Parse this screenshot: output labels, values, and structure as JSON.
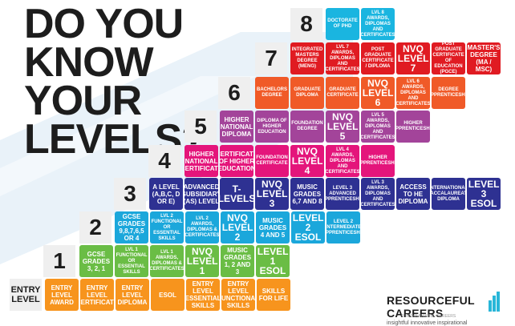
{
  "title": {
    "line1": "DO YOU",
    "line2": "KNOW",
    "line3": "YOUR",
    "line4": "LEVELS?"
  },
  "levels": {
    "entry": "ENTRY LEVEL",
    "l1": "1",
    "l2": "2",
    "l3": "3",
    "l4": "4",
    "l5": "5",
    "l6": "6",
    "l7": "7",
    "l8": "8"
  },
  "colors": {
    "entry": "#f7941d",
    "l1": "#6abd45",
    "l2": "#1ba7db",
    "l3": "#2e3192",
    "l4": "#e4157b",
    "l5": "#a3449a",
    "l6": "#f05a28",
    "l7": "#e01b22",
    "l8": "#1ab5e0"
  },
  "cards": {
    "entry": [
      "ENTRY LEVEL AWARD",
      "ENTRY LEVEL CERTIFICATE",
      "ENTRY LEVEL DIPLOMA",
      "ESOL",
      "ENTRY LEVEL ESSENTIAL SKILLS",
      "ENTRY LEVEL FUNCTIONAL SKILLS",
      "SKILLS FOR LIFE"
    ],
    "l1": [
      "GCSE GRADES 3, 2, 1",
      "LVL 1 FUNCTIONAL OR ESSENTIAL SKILLS",
      "LVL 1 AWARDS, DIPLOMAS & CERTIFICATES",
      "NVQ LEVEL 1",
      "MUSIC GRADES 1, 2 AND 3",
      "LEVEL 1 ESOL"
    ],
    "l2": [
      "GCSE GRADES 9,8,7,6,5 OR 4",
      "LVL 2 FUNCTIONAL OR ESSENTIAL SKILLS",
      "LVL 2 AWARDS, DIPLOMAS & CERTIFICATES",
      "NVQ LEVEL 2",
      "MUSIC GRADES 4 AND 5",
      "LEVEL 2 ESOL",
      "LEVEL 2 INTERMEDIATE APPRENTICESHIP"
    ],
    "l3": [
      "A LEVEL (A,B,C, D OR E)",
      "ADVANCED SUBSIDIARY (AS) LEVEL",
      "T-LEVELS",
      "NVQ LEVEL 3",
      "MUSIC GRADES 6,7 AND 8",
      "LEVEL 3 ADVANCED APPRENTICESHIP",
      "LVL 3 AWARDS, DIPLOMAS AND CERTIFICATES",
      "ACCESS TO HE DIPLOMA",
      "INTERNATIONAL BACCALAUREATE DIPLOMA",
      "LEVEL 3 ESOL"
    ],
    "l4": [
      "HIGHER NATIONAL CERTIFICATE",
      "CERTIFICATE OF HIGHER EDUCATION",
      "FOUNDATION CERTIFICATE",
      "NVQ LEVEL 4",
      "LVL 4 AWARDS, DIPLOMAS AND CERTIFICATES",
      "HIGHER APPRENTICESHIP"
    ],
    "l5": [
      "HIGHER NATIONAL DIPLOMA",
      "DIPLOMA OF HIGHER EDUCATION",
      "FOUNDATION DEGREE",
      "NVQ LEVEL 5",
      "LVL 5 AWARDS, DIPLOMAS AND CERTIFICATES",
      "HIGHER APPRENTICESHIP"
    ],
    "l6": [
      "BACHELORS DEGREE",
      "GRADUATE DIPLOMA",
      "GRADUATE CERTIFICATE",
      "NVQ LEVEL 6",
      "LVL 6 AWARDS, DIPLOMAS AND CERTIFICATES",
      "DEGREE APPRENTICESHIP"
    ],
    "l7": [
      "INTEGRATED MASTERS DEGREE (MENG)",
      "LVL 7 AWARDS, DIPLOMAS AND CERTIFICATES",
      "POST GRADUATE CERTIFICATE / DIPLOMA",
      "NVQ LEVEL 7",
      "POST GRADUATE CERTIFICATE OF EDUCATION (PGCE)",
      "MASTER'S DEGREE (MA / MSC)"
    ],
    "l8": [
      "DOCTORATE OF PHD",
      "LVL 8 AWARDS, DIPLOMAS AND CERTIFICATES"
    ]
  },
  "logo": {
    "name": "RESOURCEFUL CAREERS",
    "tagline": "insightful innovative inspirational",
    "copyright": "© RESOURCEFUL CAREERS"
  }
}
